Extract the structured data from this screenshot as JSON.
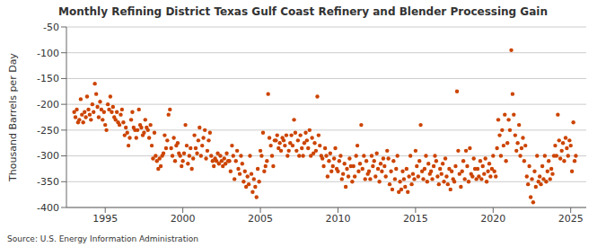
{
  "chart_data": {
    "type": "scatter",
    "title": "Monthly Refining District Texas Gulf Coast Refinery and Blender Processing Gain",
    "y_label": "Thousand Barrels per Day",
    "source": "Source: U.S. Energy Information Administration",
    "color": "#cc4400",
    "marker": "circle",
    "grid": true,
    "xlim": [
      1992.5,
      2026
    ],
    "xticks": [
      1995,
      2000,
      2005,
      2010,
      2015,
      2020,
      2025
    ],
    "ylim": [
      -400,
      -50
    ],
    "yticks": [
      -400,
      -350,
      -300,
      -250,
      -200,
      -150,
      -100,
      -50
    ],
    "x": [
      1993,
      1993.08,
      1993.17,
      1993.25,
      1993.33,
      1993.42,
      1993.5,
      1993.58,
      1993.67,
      1993.75,
      1993.83,
      1993.92,
      1994,
      1994.08,
      1994.17,
      1994.25,
      1994.33,
      1994.42,
      1994.5,
      1994.58,
      1994.67,
      1994.75,
      1994.83,
      1994.92,
      1995,
      1995.08,
      1995.17,
      1995.25,
      1995.33,
      1995.42,
      1995.5,
      1995.58,
      1995.67,
      1995.75,
      1995.83,
      1995.92,
      1996,
      1996.08,
      1996.17,
      1996.25,
      1996.33,
      1996.42,
      1996.5,
      1996.58,
      1996.67,
      1996.75,
      1996.83,
      1996.92,
      1997,
      1997.08,
      1997.17,
      1997.25,
      1997.33,
      1997.42,
      1997.5,
      1997.58,
      1997.67,
      1997.75,
      1997.83,
      1997.92,
      1998,
      1998.08,
      1998.17,
      1998.25,
      1998.33,
      1998.42,
      1998.5,
      1998.58,
      1998.67,
      1998.75,
      1998.83,
      1998.92,
      1999,
      1999.08,
      1999.17,
      1999.25,
      1999.33,
      1999.42,
      1999.5,
      1999.58,
      1999.67,
      1999.75,
      1999.83,
      1999.92,
      2000,
      2000.08,
      2000.17,
      2000.25,
      2000.33,
      2000.42,
      2000.5,
      2000.58,
      2000.67,
      2000.75,
      2000.83,
      2000.92,
      2001,
      2001.08,
      2001.17,
      2001.25,
      2001.33,
      2001.42,
      2001.5,
      2001.58,
      2001.67,
      2001.75,
      2001.83,
      2001.92,
      2002,
      2002.08,
      2002.17,
      2002.25,
      2002.33,
      2002.42,
      2002.5,
      2002.58,
      2002.67,
      2002.75,
      2002.83,
      2002.92,
      2003,
      2003.08,
      2003.17,
      2003.25,
      2003.33,
      2003.42,
      2003.5,
      2003.58,
      2003.67,
      2003.75,
      2003.83,
      2003.92,
      2004,
      2004.08,
      2004.17,
      2004.25,
      2004.33,
      2004.42,
      2004.5,
      2004.58,
      2004.67,
      2004.75,
      2004.83,
      2004.92,
      2005,
      2005.08,
      2005.17,
      2005.25,
      2005.33,
      2005.42,
      2005.5,
      2005.58,
      2005.67,
      2005.75,
      2005.83,
      2005.92,
      2006,
      2006.08,
      2006.17,
      2006.25,
      2006.33,
      2006.42,
      2006.5,
      2006.58,
      2006.67,
      2006.75,
      2006.83,
      2006.92,
      2007,
      2007.08,
      2007.17,
      2007.25,
      2007.33,
      2007.42,
      2007.5,
      2007.58,
      2007.67,
      2007.75,
      2007.83,
      2007.92,
      2008,
      2008.08,
      2008.17,
      2008.25,
      2008.33,
      2008.42,
      2008.5,
      2008.58,
      2008.67,
      2008.75,
      2008.83,
      2008.92,
      2009,
      2009.08,
      2009.17,
      2009.25,
      2009.33,
      2009.42,
      2009.5,
      2009.58,
      2009.67,
      2009.75,
      2009.83,
      2009.92,
      2010,
      2010.08,
      2010.17,
      2010.25,
      2010.33,
      2010.42,
      2010.5,
      2010.58,
      2010.67,
      2010.75,
      2010.83,
      2010.92,
      2011,
      2011.08,
      2011.17,
      2011.25,
      2011.33,
      2011.42,
      2011.5,
      2011.58,
      2011.67,
      2011.75,
      2011.83,
      2011.92,
      2012,
      2012.08,
      2012.17,
      2012.25,
      2012.33,
      2012.42,
      2012.5,
      2012.58,
      2012.67,
      2012.75,
      2012.83,
      2012.92,
      2013,
      2013.08,
      2013.17,
      2013.25,
      2013.33,
      2013.42,
      2013.5,
      2013.58,
      2013.67,
      2013.75,
      2013.83,
      2013.92,
      2014,
      2014.08,
      2014.17,
      2014.25,
      2014.33,
      2014.42,
      2014.5,
      2014.58,
      2014.67,
      2014.75,
      2014.83,
      2014.92,
      2015,
      2015.08,
      2015.17,
      2015.25,
      2015.33,
      2015.42,
      2015.5,
      2015.58,
      2015.67,
      2015.75,
      2015.83,
      2015.92,
      2016,
      2016.08,
      2016.17,
      2016.25,
      2016.33,
      2016.42,
      2016.5,
      2016.58,
      2016.67,
      2016.75,
      2016.83,
      2016.92,
      2017,
      2017.08,
      2017.17,
      2017.25,
      2017.33,
      2017.42,
      2017.5,
      2017.58,
      2017.67,
      2017.75,
      2017.83,
      2017.92,
      2018,
      2018.08,
      2018.17,
      2018.25,
      2018.33,
      2018.42,
      2018.5,
      2018.58,
      2018.67,
      2018.75,
      2018.83,
      2018.92,
      2019,
      2019.08,
      2019.17,
      2019.25,
      2019.33,
      2019.42,
      2019.5,
      2019.58,
      2019.67,
      2019.75,
      2019.83,
      2019.92,
      2020,
      2020.08,
      2020.17,
      2020.25,
      2020.33,
      2020.42,
      2020.5,
      2020.58,
      2020.67,
      2020.75,
      2020.83,
      2020.92,
      2021,
      2021.08,
      2021.17,
      2021.25,
      2021.33,
      2021.42,
      2021.5,
      2021.58,
      2021.67,
      2021.75,
      2021.83,
      2021.92,
      2022,
      2022.08,
      2022.17,
      2022.25,
      2022.33,
      2022.42,
      2022.5,
      2022.58,
      2022.67,
      2022.75,
      2022.83,
      2022.92,
      2023,
      2023.08,
      2023.17,
      2023.25,
      2023.33,
      2023.42,
      2023.5,
      2023.58,
      2023.67,
      2023.75,
      2023.83,
      2023.92,
      2024,
      2024.08,
      2024.17,
      2024.25,
      2024.33,
      2024.42,
      2024.5,
      2024.58,
      2024.67,
      2024.75,
      2024.83,
      2024.92,
      2025,
      2025.08,
      2025.17,
      2025.25,
      2025.33
    ],
    "values": [
      -215,
      -225,
      -210,
      -235,
      -230,
      -190,
      -220,
      -235,
      -215,
      -225,
      -185,
      -210,
      -220,
      -230,
      -200,
      -215,
      -160,
      -180,
      -205,
      -225,
      -195,
      -210,
      -230,
      -215,
      -240,
      -250,
      -200,
      -210,
      -185,
      -215,
      -205,
      -225,
      -230,
      -215,
      -235,
      -240,
      -220,
      -210,
      -235,
      -260,
      -245,
      -255,
      -280,
      -265,
      -230,
      -215,
      -245,
      -250,
      -265,
      -250,
      -210,
      -240,
      -245,
      -260,
      -255,
      -230,
      -245,
      -250,
      -265,
      -240,
      -280,
      -305,
      -255,
      -300,
      -310,
      -325,
      -305,
      -320,
      -300,
      -295,
      -260,
      -285,
      -270,
      -220,
      -210,
      -285,
      -300,
      -265,
      -310,
      -280,
      -275,
      -295,
      -300,
      -320,
      -310,
      -295,
      -240,
      -280,
      -315,
      -300,
      -285,
      -325,
      -305,
      -260,
      -285,
      -295,
      -270,
      -245,
      -300,
      -280,
      -265,
      -250,
      -305,
      -290,
      -270,
      -255,
      -300,
      -310,
      -320,
      -305,
      -310,
      -295,
      -315,
      -300,
      -310,
      -320,
      -305,
      -315,
      -295,
      -310,
      -310,
      -330,
      -280,
      -300,
      -345,
      -310,
      -290,
      -325,
      -335,
      -300,
      -315,
      -350,
      -330,
      -360,
      -340,
      -355,
      -300,
      -335,
      -370,
      -345,
      -360,
      -380,
      -325,
      -350,
      -290,
      -300,
      -255,
      -330,
      -320,
      -310,
      -180,
      -265,
      -280,
      -300,
      -320,
      -270,
      -270,
      -260,
      -285,
      -275,
      -290,
      -265,
      -270,
      -280,
      -260,
      -300,
      -290,
      -275,
      -260,
      -280,
      -230,
      -255,
      -290,
      -270,
      -300,
      -260,
      -285,
      -300,
      -275,
      -255,
      -270,
      -285,
      -250,
      -300,
      -265,
      -295,
      -275,
      -290,
      -185,
      -260,
      -280,
      -300,
      -305,
      -320,
      -285,
      -300,
      -340,
      -310,
      -295,
      -330,
      -320,
      -305,
      -285,
      -325,
      -330,
      -310,
      -300,
      -345,
      -335,
      -315,
      -360,
      -325,
      -340,
      -305,
      -320,
      -350,
      -320,
      -340,
      -300,
      -280,
      -330,
      -315,
      -240,
      -325,
      -300,
      -345,
      -310,
      -335,
      -330,
      -345,
      -300,
      -320,
      -310,
      -340,
      -295,
      -325,
      -350,
      -315,
      -330,
      -305,
      -320,
      -340,
      -290,
      -305,
      -355,
      -330,
      -365,
      -310,
      -345,
      -325,
      -300,
      -370,
      -350,
      -365,
      -330,
      -345,
      -360,
      -325,
      -370,
      -340,
      -300,
      -355,
      -335,
      -345,
      -290,
      -320,
      -340,
      -310,
      -240,
      -330,
      -345,
      -325,
      -300,
      -350,
      -315,
      -335,
      -330,
      -345,
      -320,
      -300,
      -310,
      -340,
      -355,
      -325,
      -335,
      -315,
      -350,
      -305,
      -340,
      -355,
      -325,
      -365,
      -330,
      -345,
      -350,
      -320,
      -175,
      -290,
      -335,
      -360,
      -330,
      -310,
      -345,
      -290,
      -320,
      -350,
      -285,
      -335,
      -340,
      -305,
      -325,
      -345,
      -325,
      -340,
      -310,
      -345,
      -320,
      -335,
      -305,
      -350,
      -330,
      -315,
      -340,
      -325,
      -300,
      -330,
      -340,
      -285,
      -230,
      -260,
      -300,
      -250,
      -280,
      -220,
      -310,
      -275,
      -230,
      -250,
      -95,
      -180,
      -220,
      -260,
      -290,
      -275,
      -240,
      -300,
      -285,
      -265,
      -310,
      -280,
      -340,
      -355,
      -320,
      -380,
      -345,
      -390,
      -330,
      -360,
      -300,
      -350,
      -340,
      -355,
      -320,
      -345,
      -300,
      -350,
      -330,
      -310,
      -345,
      -325,
      -335,
      -300,
      -280,
      -300,
      -220,
      -270,
      -305,
      -290,
      -275,
      -310,
      -265,
      -285,
      -300,
      -270,
      -280,
      -330,
      -235,
      -310,
      -300
    ]
  }
}
